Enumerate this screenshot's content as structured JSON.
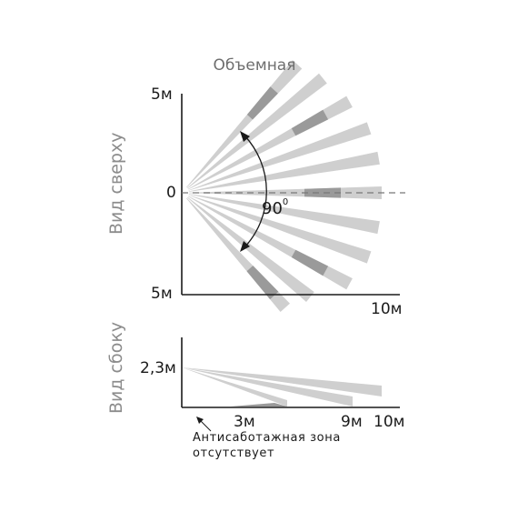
{
  "title": "Объемная",
  "top_view": {
    "label": "Вид сверху",
    "y_top": "5м",
    "y_mid": "0",
    "y_bottom": "5м",
    "x_end": "10м",
    "angle": "90",
    "angle_unit": "0"
  },
  "side_view": {
    "label": "Вид сбоку",
    "height": "2,3м",
    "x_ticks": [
      "3м",
      "9м",
      "10м"
    ],
    "note_line1": "Антисаботажная зона",
    "note_line2": "отсутствует"
  },
  "colors": {
    "beam_light": "#cfcfcf",
    "beam_dark": "#9a9a9a",
    "axis": "#1a1a1a",
    "center_line": "#777777",
    "label_gray": "#8c8c8c"
  }
}
